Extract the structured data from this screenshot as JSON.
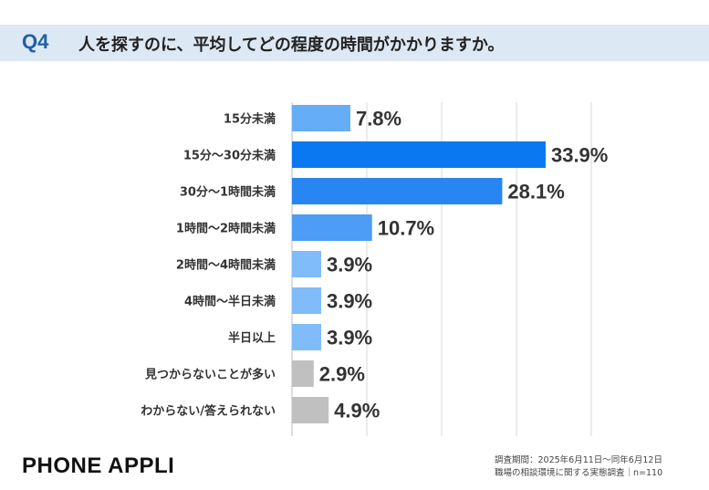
{
  "header": {
    "question_label": "Q4",
    "question_text": "人を探すのに、平均してどの程度の時間がかかりますか。"
  },
  "chart_data": {
    "type": "bar",
    "orientation": "horizontal",
    "categories": [
      "15分未満",
      "15分〜30分未満",
      "30分〜1時間未満",
      "1時間〜2時間未満",
      "2時間〜4時間未満",
      "4時間〜半日未満",
      "半日以上",
      "見つからないことが多い",
      "わからない/答えられない"
    ],
    "values": [
      7.8,
      33.9,
      28.1,
      10.7,
      3.9,
      3.9,
      3.9,
      2.9,
      4.9
    ],
    "value_labels": [
      "7.8%",
      "33.9%",
      "28.1%",
      "10.7%",
      "3.9%",
      "3.9%",
      "3.9%",
      "2.9%",
      "4.9%"
    ],
    "unit": "%",
    "xlim": [
      0,
      40
    ],
    "grid": true,
    "colors": [
      "#66adf8",
      "#0a78f0",
      "#2886f2",
      "#4d9cf5",
      "#80bcf9",
      "#80bcf9",
      "#80bcf9",
      "#c0c0c0",
      "#c0c0c0"
    ]
  },
  "footer": {
    "brand": "PHONE APPLI",
    "survey_period": "調査期間：2025年6月11日〜同年6月12日",
    "survey_name": "職場の相談環境に関する実態調査｜n=110"
  }
}
